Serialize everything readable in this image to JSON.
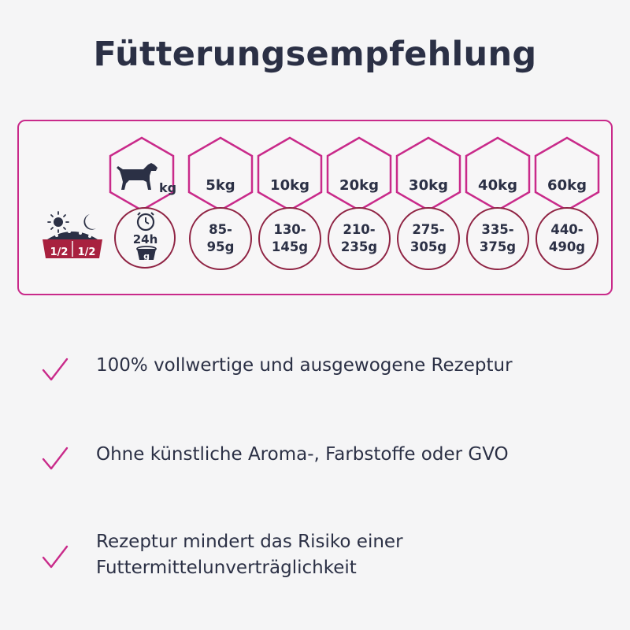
{
  "title": "Fütterungsempfehlung",
  "feeding": {
    "weight_unit_label": "kg",
    "time_label": "24h",
    "gram_label": "g",
    "meal_split": [
      "1/2",
      "1/2"
    ],
    "weights": [
      "5kg",
      "10kg",
      "20kg",
      "30kg",
      "40kg",
      "60kg"
    ],
    "amounts": [
      {
        "line1": "85-",
        "line2": "95g"
      },
      {
        "line1": "130-",
        "line2": "145g"
      },
      {
        "line1": "210-",
        "line2": "235g"
      },
      {
        "line1": "275-",
        "line2": "305g"
      },
      {
        "line1": "335-",
        "line2": "375g"
      },
      {
        "line1": "440-",
        "line2": "490g"
      }
    ]
  },
  "benefits": [
    {
      "line1": "100% vollwertige und ausgewogene Rezeptur",
      "line2": ""
    },
    {
      "line1": "Ohne künstliche Aroma-, Farbstoffe oder GVO",
      "line2": ""
    },
    {
      "line1": "Rezeptur mindert das Risiko einer",
      "line2": "Futtermittelunverträglichkeit"
    }
  ],
  "colors": {
    "accent_pink": "#c92a8a",
    "accent_wine": "#8f2343",
    "text_navy": "#2b3045",
    "bowl_red": "#a8213f"
  },
  "icons": [
    "dog-icon",
    "sun-icon",
    "moon-icon",
    "food-bowl-icon",
    "clock-icon",
    "bowl-icon",
    "check-icon"
  ]
}
